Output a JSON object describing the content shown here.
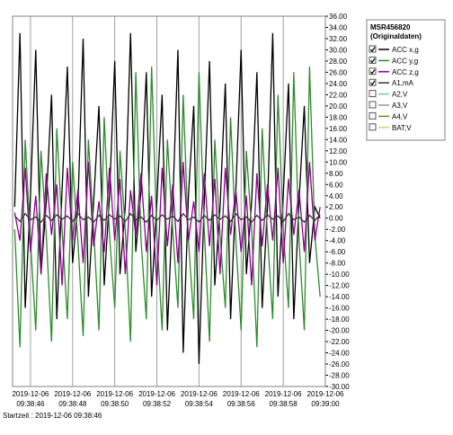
{
  "chart_data": {
    "type": "line",
    "x": [
      -0.75,
      -0.5,
      -0.25,
      0,
      0.25,
      0.5,
      0.75,
      1,
      1.25,
      1.5,
      1.75,
      2,
      2.25,
      2.5,
      2.75,
      3,
      3.25,
      3.5,
      3.75,
      4,
      4.25,
      4.5,
      4.75,
      5,
      5.25,
      5.5,
      5.75,
      6,
      6.25,
      6.5,
      6.75,
      7,
      7.25,
      7.5,
      7.75,
      8,
      8.25,
      8.5,
      8.75,
      9,
      9.25,
      9.5,
      9.75,
      10,
      10.25,
      10.5,
      10.75,
      11,
      11.25,
      11.5,
      11.75,
      12,
      12.25,
      12.5,
      12.75,
      13,
      13.25,
      13.5,
      13.75
    ],
    "xlim": [
      -0.85,
      14
    ],
    "xticks": [
      {
        "value": 0,
        "label": "2019-12-06 09:38:46"
      },
      {
        "value": 2,
        "label": "2019-12-06 09:38:48"
      },
      {
        "value": 4,
        "label": "2019-12-06 09:38:50"
      },
      {
        "value": 6,
        "label": "2019-12-06 09:38:52"
      },
      {
        "value": 8,
        "label": "2019-12-06 09:38:54"
      },
      {
        "value": 10,
        "label": "2019-12-06 09:38:56"
      },
      {
        "value": 12,
        "label": "2019-12-06 09:38:58"
      },
      {
        "value": 14,
        "label": "2019-12-06 09:39:00"
      }
    ],
    "ylim": [
      -30,
      36
    ],
    "yticks": [
      {
        "value": 36,
        "label": "36.00"
      },
      {
        "value": 34,
        "label": "34.00"
      },
      {
        "value": 32,
        "label": "32.00"
      },
      {
        "value": 30,
        "label": "30.00"
      },
      {
        "value": 28,
        "label": "28.00"
      },
      {
        "value": 26,
        "label": "26.00"
      },
      {
        "value": 24,
        "label": "24.00"
      },
      {
        "value": 22,
        "label": "22.00"
      },
      {
        "value": 20,
        "label": "20.00"
      },
      {
        "value": 18,
        "label": "18.00"
      },
      {
        "value": 16,
        "label": "16.00"
      },
      {
        "value": 14,
        "label": "14.00"
      },
      {
        "value": 12,
        "label": "12.00"
      },
      {
        "value": 10,
        "label": "10.00"
      },
      {
        "value": 8,
        "label": "8.00"
      },
      {
        "value": 6,
        "label": "6.00"
      },
      {
        "value": 4,
        "label": "4.00"
      },
      {
        "value": 2,
        "label": "2.00"
      },
      {
        "value": 0,
        "label": "0.00"
      },
      {
        "value": -2,
        "label": "-2.00"
      },
      {
        "value": -4,
        "label": "-4.00"
      },
      {
        "value": -6,
        "label": "-6.00"
      },
      {
        "value": -8,
        "label": "-8.00"
      },
      {
        "value": -10,
        "label": "-10.00"
      },
      {
        "value": -12,
        "label": "-12.00"
      },
      {
        "value": -14,
        "label": "-14.00"
      },
      {
        "value": -16,
        "label": "-16.00"
      },
      {
        "value": -18,
        "label": "-18.00"
      },
      {
        "value": -20,
        "label": "-20.00"
      },
      {
        "value": -22,
        "label": "-22.00"
      },
      {
        "value": -24,
        "label": "-24.00"
      },
      {
        "value": -26,
        "label": "-26.00"
      },
      {
        "value": -28,
        "label": "-28.00"
      },
      {
        "value": -30,
        "label": "-30.00"
      }
    ],
    "grid": true,
    "footer": "Startzeit : 2019-12-06 09:38:46",
    "legend_title": "MSR456820 (Originaldaten)",
    "series": [
      {
        "name": "ACC x,g",
        "color": "#000000",
        "checked": true,
        "values": [
          2,
          33,
          -16,
          4,
          30,
          -10,
          3,
          22,
          -18,
          5,
          27,
          -8,
          2,
          32,
          -14,
          3,
          20,
          -12,
          4,
          28,
          -10,
          2,
          33,
          -6,
          5,
          26,
          -14,
          3,
          22,
          -20,
          2,
          30,
          -24,
          4,
          20,
          -26,
          3,
          28,
          -12,
          2,
          24,
          -18,
          5,
          30,
          -10,
          3,
          26,
          -16,
          2,
          33,
          -14,
          4,
          24,
          -18,
          3,
          20,
          -8,
          2,
          0
        ]
      },
      {
        "name": "ACC y,g",
        "color": "#2e8b2e",
        "checked": true,
        "values": [
          -2,
          -23,
          14,
          -4,
          -20,
          12,
          -3,
          -22,
          16,
          -2,
          -18,
          10,
          -4,
          -21,
          14,
          -2,
          -20,
          18,
          -3,
          -16,
          12,
          -2,
          -22,
          26,
          -4,
          -18,
          27,
          -3,
          -20,
          14,
          -2,
          -16,
          22,
          -4,
          -18,
          26,
          -2,
          -22,
          14,
          -3,
          -16,
          18,
          -4,
          -20,
          12,
          -2,
          -23,
          16,
          -3,
          -18,
          22,
          -2,
          -16,
          26,
          -4,
          -20,
          27,
          -3,
          -14
        ]
      },
      {
        "name": "ACC z,g",
        "color": "#8b008b",
        "checked": true,
        "values": [
          1,
          -4,
          9,
          -6,
          4,
          -10,
          8,
          -3,
          6,
          -12,
          9,
          -4,
          5,
          -8,
          10,
          -5,
          3,
          -6,
          9,
          -4,
          7,
          -10,
          5,
          -3,
          8,
          -6,
          4,
          -12,
          9,
          -5,
          6,
          -8,
          10,
          -4,
          3,
          -6,
          8,
          -5,
          7,
          -10,
          9,
          -3,
          5,
          -6,
          4,
          -12,
          8,
          -5,
          6,
          -4,
          9,
          -8,
          7,
          -3,
          5,
          -6,
          10,
          -4,
          2
        ]
      },
      {
        "name": "A1,mA",
        "color": "#333333",
        "checked": true,
        "values": [
          0.4,
          -0.6,
          0.8,
          -0.3,
          0.2,
          -0.7,
          0.5,
          -0.4,
          0.6,
          -0.2,
          0.4,
          -0.6,
          0.8,
          -0.3,
          0.2,
          -0.7,
          0.5,
          -0.4,
          0.6,
          -0.2,
          0.4,
          -0.6,
          0.8,
          -0.3,
          0.2,
          -0.7,
          0.5,
          -0.4,
          0.6,
          -0.2,
          0.4,
          -0.6,
          0.8,
          -0.3,
          0.2,
          -0.7,
          0.5,
          -0.4,
          0.6,
          -0.2,
          0.4,
          -0.6,
          0.8,
          -0.3,
          0.2,
          -0.7,
          0.5,
          -0.4,
          0.6,
          -0.2,
          0.4,
          -0.6,
          0.8,
          -0.3,
          0.2,
          -0.7,
          0.5,
          -0.4,
          0.6
        ]
      }
    ],
    "hidden_channels": [
      {
        "name": "A2,V",
        "color": "#7fc97f",
        "checked": false
      },
      {
        "name": "A3,V",
        "color": "#999999",
        "checked": false
      },
      {
        "name": "A4,V",
        "color": "#6b8e23",
        "checked": false
      },
      {
        "name": "BAT,V",
        "color": "#d8d080",
        "checked": false
      }
    ]
  }
}
